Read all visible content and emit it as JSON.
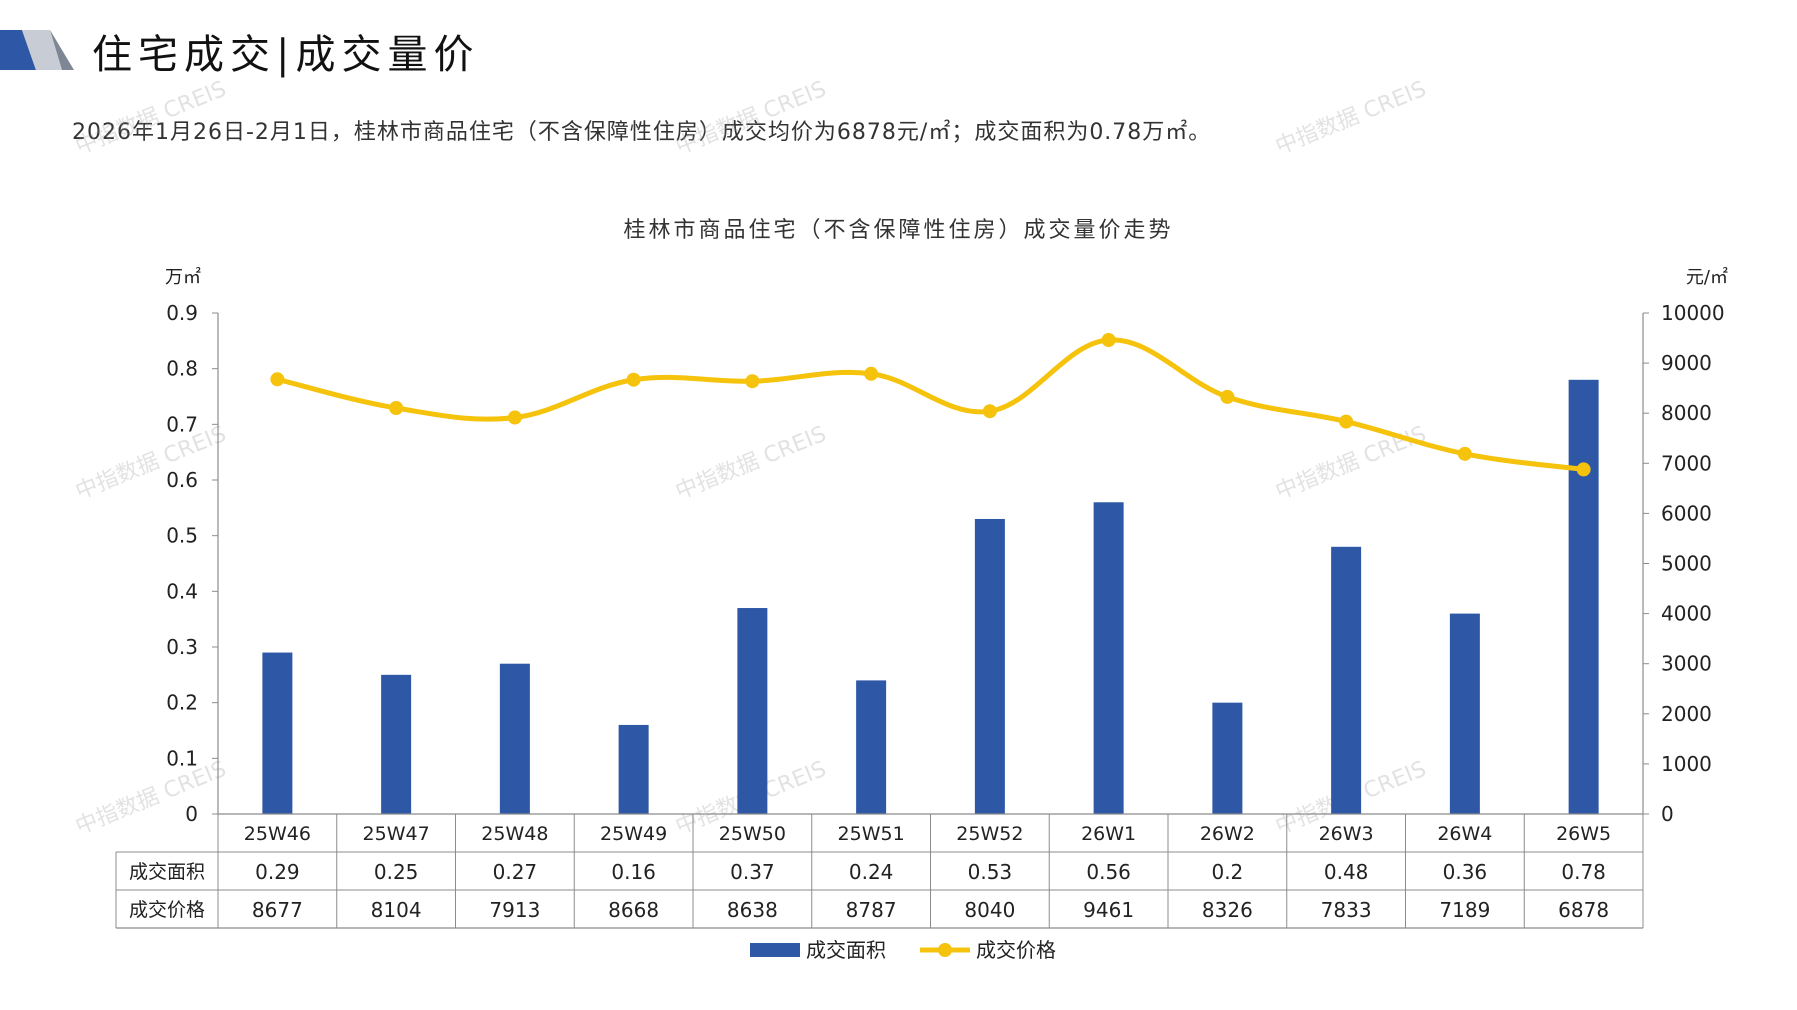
{
  "header": {
    "title": "住宅成交|成交量价",
    "summary": "2026年1月26日-2月1日，桂林市商品住宅（不含保障性住房）成交均价为6878元/㎡；成交面积为0.78万㎡。"
  },
  "watermark": "中指数据 CREIS",
  "colors": {
    "bar": "#2e58a6",
    "line": "#f5c20c",
    "accent": "#2e58a6"
  },
  "chart_data": {
    "type": "bar",
    "title": "桂林市商品住宅（不含保障性住房）成交量价走势",
    "categories": [
      "25W46",
      "25W47",
      "25W48",
      "25W49",
      "25W50",
      "25W51",
      "25W52",
      "26W1",
      "26W2",
      "26W3",
      "26W4",
      "26W5"
    ],
    "series": [
      {
        "name": "成交面积",
        "type": "bar",
        "axis": "left",
        "values": [
          0.29,
          0.25,
          0.27,
          0.16,
          0.37,
          0.24,
          0.53,
          0.56,
          0.2,
          0.48,
          0.36,
          0.78
        ],
        "table_labels": [
          "0.29",
          "0.25",
          "0.27",
          "0.16",
          "0.37",
          "0.24",
          "0.53",
          "0.56",
          "0.2",
          "0.48",
          "0.36",
          "0.78"
        ]
      },
      {
        "name": "成交价格",
        "type": "line",
        "axis": "right",
        "values": [
          8677,
          8104,
          7913,
          8668,
          8638,
          8787,
          8040,
          9461,
          8326,
          7833,
          7189,
          6878
        ],
        "table_labels": [
          "8677",
          "8104",
          "7913",
          "8668",
          "8638",
          "8787",
          "8040",
          "9461",
          "8326",
          "7833",
          "7189",
          "6878"
        ]
      }
    ],
    "y_left": {
      "unit": "万㎡",
      "range": [
        0,
        0.9
      ],
      "ticks": [
        "0",
        "0.1",
        "0.2",
        "0.3",
        "0.4",
        "0.5",
        "0.6",
        "0.7",
        "0.8",
        "0.9"
      ]
    },
    "y_right": {
      "unit": "元/㎡",
      "range": [
        0,
        10000
      ],
      "ticks": [
        "0",
        "1000",
        "2000",
        "3000",
        "4000",
        "5000",
        "6000",
        "7000",
        "8000",
        "9000",
        "10000"
      ]
    },
    "grid": false,
    "legend": "bottom-center",
    "data_table": true
  }
}
